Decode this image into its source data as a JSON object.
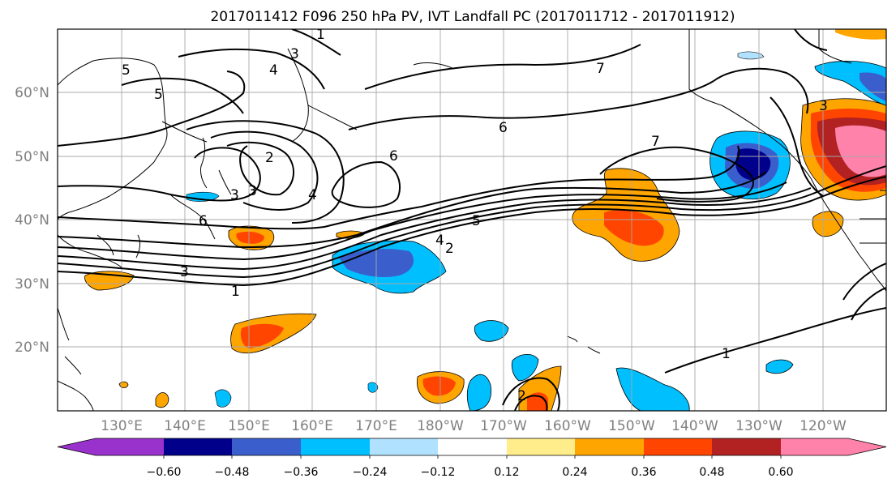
{
  "map": {
    "title": "2017011412 F096 250 hPa PV, IVT Landfall PC (2017011712 - 2017011912)",
    "lat_labels": [
      "60°N",
      "50°N",
      "40°N",
      "30°N",
      "20°N"
    ],
    "lon_labels": [
      "130°E",
      "140°E",
      "150°E",
      "160°E",
      "170°E",
      "180°W",
      "170°W",
      "160°W",
      "150°W",
      "140°W",
      "130°W",
      "120°W"
    ],
    "contour_labels": [
      "5",
      "5",
      "3",
      "4",
      "1",
      "7",
      "6",
      "2",
      "3",
      "3",
      "6",
      "4",
      "6",
      "7",
      "5",
      "4",
      "2",
      "3",
      "1",
      "1",
      "2",
      "3"
    ],
    "colorbar": {
      "tick_labels": [
        "−0.60",
        "−0.48",
        "−0.36",
        "−0.24",
        "−0.12",
        "0.12",
        "0.24",
        "0.36",
        "0.48",
        "0.60"
      ],
      "colors": [
        "#9932cc",
        "#00008b",
        "#3a5fcd",
        "#00bfff",
        "#b0e2ff",
        "#ffffff",
        "#ffec8b",
        "#ffa500",
        "#ff4500",
        "#b22222",
        "#ff82ab"
      ]
    }
  }
}
